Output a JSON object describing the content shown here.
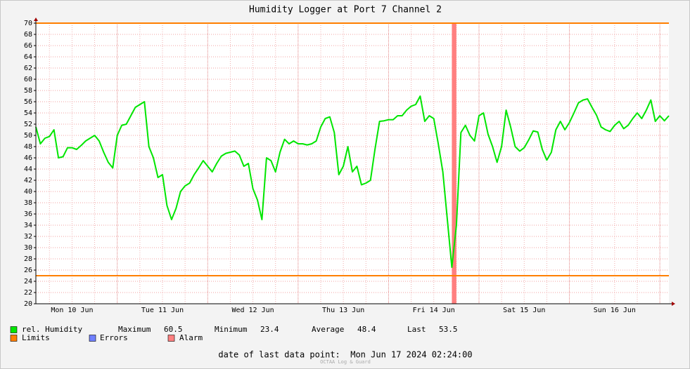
{
  "chart_data": {
    "type": "line",
    "title": "Humidity Logger at Port 7 Channel 2",
    "categories": [
      null,
      null,
      null,
      null,
      null,
      null,
      null,
      null,
      "Mon 10 Jun",
      null,
      null,
      null,
      null,
      null,
      null,
      null,
      null,
      null,
      null,
      null,
      null,
      null,
      null,
      null,
      null,
      null,
      null,
      null,
      "Tue 11 Jun",
      null,
      null,
      null,
      null,
      null,
      null,
      null,
      null,
      null,
      null,
      null,
      null,
      null,
      null,
      null,
      null,
      null,
      null,
      null,
      "Wed 12 Jun",
      null,
      null,
      null,
      null,
      null,
      null,
      null,
      null,
      null,
      null,
      null,
      null,
      null,
      null,
      null,
      null,
      null,
      null,
      null,
      "Thu 13 Jun",
      null,
      null,
      null,
      null,
      null,
      null,
      null,
      null,
      null,
      null,
      null,
      null,
      null,
      null,
      null,
      null,
      null,
      null,
      null,
      "Fri 14 Jun",
      null,
      null,
      null,
      null,
      null,
      null,
      null,
      null,
      null,
      null,
      null,
      null,
      null,
      null,
      null,
      null,
      null,
      null,
      null,
      "Sat 15 Jun",
      null,
      null,
      null,
      null,
      null,
      null,
      null,
      null,
      null,
      null,
      null,
      null,
      null,
      null,
      null,
      null,
      null,
      null,
      null,
      "Sun 16 Jun",
      null,
      null,
      null,
      null,
      null,
      null,
      null,
      null,
      null,
      null,
      null,
      null
    ],
    "series": [
      {
        "name": "rel. Humidity",
        "color": "#00e600",
        "values": [
          51.5,
          48.5,
          49.5,
          49.8,
          51,
          46,
          46.2,
          47.8,
          47.8,
          47.5,
          48.2,
          49,
          49.5,
          50,
          49,
          47,
          45.2,
          44.2,
          50,
          51.8,
          52,
          53.5,
          55,
          55.5,
          56,
          48,
          46,
          42.5,
          43,
          37.5,
          35,
          37,
          40,
          41,
          41.5,
          43,
          44.2,
          45.5,
          44.5,
          43.5,
          45,
          46.3,
          46.8,
          47,
          47.2,
          46.5,
          44.5,
          45,
          40.5,
          38.5,
          35,
          46,
          45.5,
          43.5,
          47,
          49.3,
          48.5,
          49,
          48.5,
          48.5,
          48.3,
          48.5,
          49,
          51.5,
          53,
          53.3,
          50.5,
          43,
          44.5,
          48,
          43.5,
          44.5,
          41.2,
          41.5,
          42,
          47.5,
          52.5,
          52.6,
          52.8,
          52.8,
          53.5,
          53.5,
          54.5,
          55.2,
          55.5,
          57,
          52.5,
          53.5,
          53,
          48.5,
          43.5,
          35,
          26.5,
          34,
          50.5,
          51.8,
          50,
          49,
          53.5,
          54,
          50.2,
          48,
          45.2,
          48,
          54.5,
          51.5,
          48,
          47.2,
          47.8,
          49.2,
          50.8,
          50.6,
          47.5,
          45.6,
          47,
          51,
          52.5,
          51,
          52.3,
          54,
          55.8,
          56.3,
          56.5,
          55,
          53.6,
          51.5,
          51,
          50.7,
          51.8,
          52.5,
          51.2,
          51.8,
          53,
          54,
          53,
          54.5,
          56.3,
          52.5,
          53.5,
          52.6,
          53.5
        ]
      }
    ],
    "limits": {
      "name": "Limits",
      "color": "#ff7f00",
      "values": [
        70,
        25
      ]
    },
    "errors": {
      "name": "Errors",
      "color": "#7080ff"
    },
    "alarm": {
      "name": "Alarm",
      "color": "#ff7f7f",
      "spans": [
        [
          92,
          93
        ]
      ]
    },
    "stats": [
      {
        "label": "Maximum",
        "value": 60.5
      },
      {
        "label": "Minimum",
        "value": 23.4
      },
      {
        "label": "Average",
        "value": 48.4
      },
      {
        "label": "Last",
        "value": 53.5
      }
    ],
    "ylim": [
      20,
      70
    ],
    "yticks": [
      20,
      22,
      24,
      26,
      28,
      30,
      32,
      34,
      36,
      38,
      40,
      42,
      44,
      46,
      48,
      50,
      52,
      54,
      56,
      58,
      60,
      62,
      64,
      66,
      68,
      70
    ],
    "grid": true,
    "footer": "date of last data point:  Mon Jun 17 2024 02:24:00",
    "watermark": "OCTAA Log & Guard"
  }
}
